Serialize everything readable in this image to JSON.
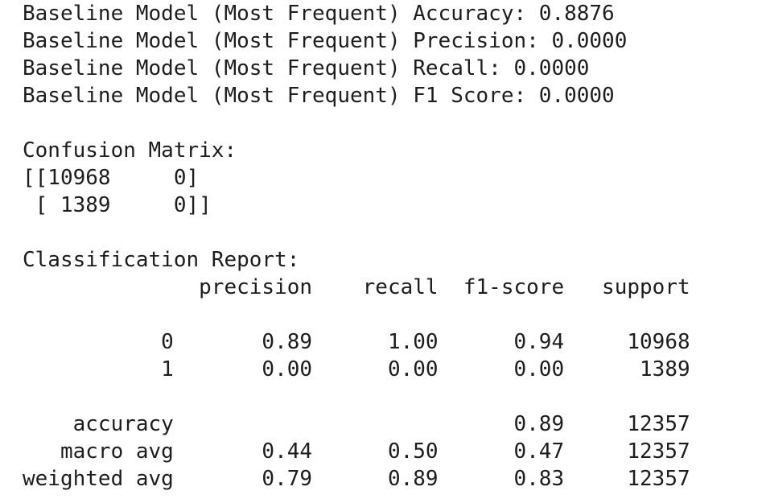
{
  "output": {
    "lines": [
      "Baseline Model (Most Frequent) Accuracy: 0.8876",
      "Baseline Model (Most Frequent) Precision: 0.0000",
      "Baseline Model (Most Frequent) Recall: 0.0000",
      "Baseline Model (Most Frequent) F1 Score: 0.0000",
      "",
      "Confusion Matrix:",
      "[[10968     0]",
      " [ 1389     0]]",
      "",
      "Classification Report:",
      "              precision    recall  f1-score   support",
      "",
      "           0       0.89      1.00      0.94     10968",
      "           1       0.00      0.00      0.00      1389",
      "",
      "    accuracy                           0.89     12357",
      "   macro avg       0.44      0.50      0.47     12357",
      "weighted avg       0.79      0.89      0.83     12357"
    ]
  }
}
